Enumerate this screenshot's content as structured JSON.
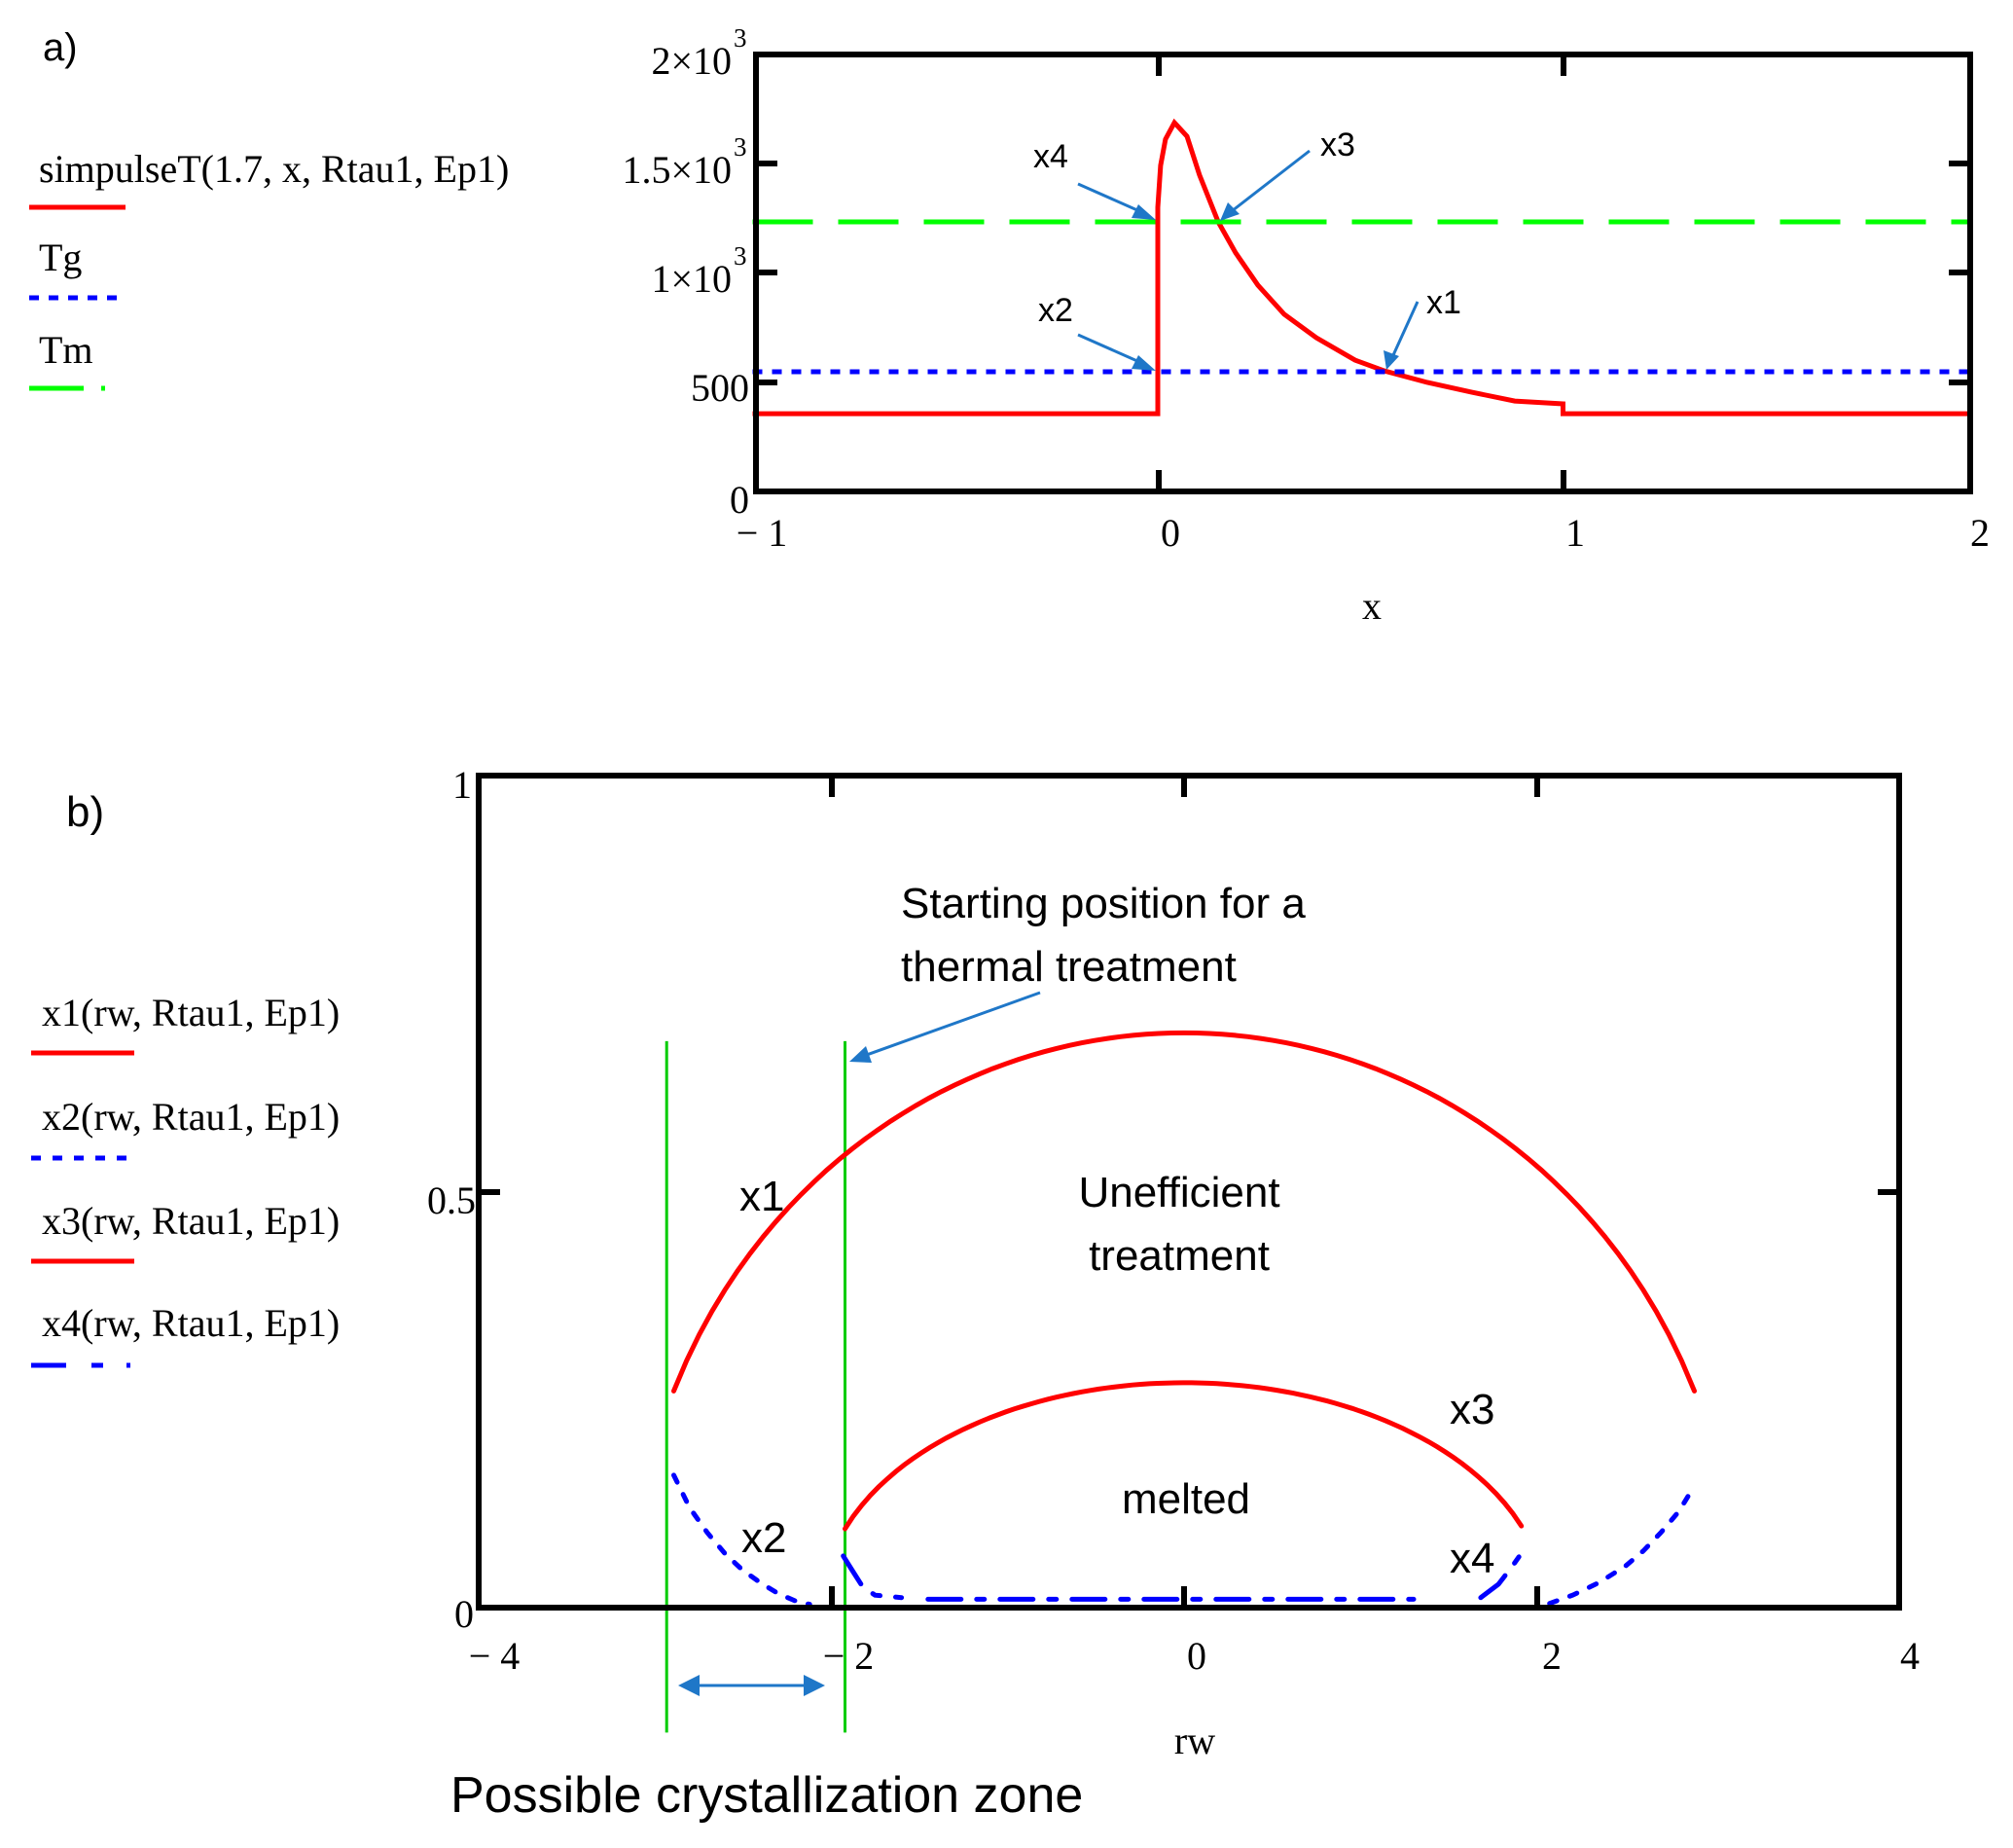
{
  "panel_a": {
    "label": "a)",
    "legend": [
      {
        "label": "simpulseT(1.7, x, Rtau1, Ep1)",
        "color": "#ff0000",
        "style": "solid"
      },
      {
        "label": "Tg",
        "color": "#0000ff",
        "style": "dotted"
      },
      {
        "label": "Tm",
        "color": "#00ff00",
        "style": "dashed"
      }
    ],
    "y_ticks": [
      {
        "base": "0",
        "exp": ""
      },
      {
        "base": "500",
        "exp": ""
      },
      {
        "base": "1×10",
        "exp": "3"
      },
      {
        "base": "1.5×10",
        "exp": "3"
      },
      {
        "base": "2×10",
        "exp": "3"
      }
    ],
    "x_ticks": [
      "− 1",
      "0",
      "1",
      "2"
    ],
    "xlabel": "x",
    "annotations": [
      "x4",
      "x3",
      "x2",
      "x1"
    ]
  },
  "panel_b": {
    "label": "b)",
    "legend": [
      {
        "label": "x1(rw, Rtau1, Ep1)",
        "color": "#ff0000",
        "style": "solid"
      },
      {
        "label": "x2(rw, Rtau1, Ep1)",
        "color": "#0000ff",
        "style": "dotted"
      },
      {
        "label": "x3(rw, Rtau1, Ep1)",
        "color": "#ff0000",
        "style": "solid"
      },
      {
        "label": "x4(rw, Rtau1, Ep1)",
        "color": "#0000ff",
        "style": "dash-dot"
      }
    ],
    "y_ticks": [
      "0",
      "0.5",
      "1"
    ],
    "x_ticks": [
      "− 4",
      "− 2",
      "0",
      "2",
      "4"
    ],
    "xlabel": "rw",
    "annotations": {
      "start_line1": "Starting position for a",
      "start_line2": "thermal treatment",
      "uneff_line1": "Unefficient",
      "uneff_line2": "treatment",
      "melted": "melted",
      "x1": "x1",
      "x2": "x2",
      "x3": "x3",
      "x4": "x4",
      "caption": "Possible crystallization zone"
    }
  },
  "chart_data": [
    {
      "type": "line",
      "title": "a)",
      "xlabel": "x",
      "ylabel": "",
      "xlim": [
        -1,
        2
      ],
      "ylim": [
        0,
        2000
      ],
      "grid": false,
      "legend_position": "left",
      "series": [
        {
          "name": "simpulseT(1.7, x, Rtau1, Ep1)",
          "color": "#ff0000",
          "style": "solid",
          "x": [
            -1,
            0,
            0,
            0.007,
            0.019,
            0.041,
            0.072,
            0.103,
            0.149,
            0.192,
            0.247,
            0.312,
            0.391,
            0.487,
            0.559,
            0.665,
            0.775,
            0.881,
            1.0,
            1.0,
            2.0
          ],
          "y": [
            356,
            356,
            1301,
            1492,
            1612,
            1688,
            1626,
            1448,
            1234,
            1092,
            944,
            811,
            704,
            601,
            552,
            499,
            454,
            414,
            401,
            356,
            356
          ]
        },
        {
          "name": "Tg",
          "color": "#0000ff",
          "style": "dotted",
          "x": [
            -1,
            2
          ],
          "y": [
            548,
            548
          ]
        },
        {
          "name": "Tm",
          "color": "#00ff00",
          "style": "dashed",
          "x": [
            -1,
            2
          ],
          "y": [
            1234,
            1234
          ]
        }
      ],
      "annotations": [
        {
          "text": "x4",
          "target": [
            0,
            1234
          ]
        },
        {
          "text": "x3",
          "target": [
            0.149,
            1234
          ]
        },
        {
          "text": "x2",
          "target": [
            0,
            548
          ]
        },
        {
          "text": "x1",
          "target": [
            0.559,
            548
          ]
        }
      ]
    },
    {
      "type": "line",
      "title": "b)",
      "xlabel": "rw",
      "ylabel": "",
      "xlim": [
        -4,
        4
      ],
      "ylim": [
        0,
        1
      ],
      "grid": false,
      "legend_position": "left",
      "series": [
        {
          "name": "x1(rw, Rtau1, Ep1)",
          "color": "#ff0000",
          "style": "solid",
          "ellipse": {
            "a": 3.12,
            "peak": 0.69,
            "xmin": -2.89,
            "xmax": 2.89
          }
        },
        {
          "name": "x2(rw, Rtau1, Ep1)",
          "color": "#0000ff",
          "style": "dotted",
          "segments": [
            {
              "x": [
                -2.89,
                -2.8,
                -2.7,
                -2.6,
                -2.5,
                -2.4,
                -2.3,
                -2.2,
                -2.12
              ],
              "y": [
                0.159,
                0.12,
                0.09,
                0.065,
                0.045,
                0.03,
                0.017,
                0.008,
                0.004
              ]
            },
            {
              "x": [
                2.07,
                2.2,
                2.35,
                2.5,
                2.6,
                2.7,
                2.8,
                2.89
              ],
              "y": [
                0.005,
                0.015,
                0.03,
                0.05,
                0.068,
                0.09,
                0.115,
                0.146
              ]
            }
          ]
        },
        {
          "name": "x3(rw, Rtau1, Ep1)",
          "color": "#ff0000",
          "style": "solid",
          "ellipse": {
            "a": 2.05,
            "peak": 0.27,
            "xmin": -1.92,
            "xmax": 1.91
          }
        },
        {
          "name": "x4(rw, Rtau1, Ep1)",
          "color": "#0000ff",
          "style": "dash-dot",
          "segments": [
            {
              "x": [
                -1.93,
                -1.88,
                -1.82,
                -1.75,
                -1.6
              ],
              "y": [
                0.062,
                0.045,
                0.025,
                0.015,
                0.012
              ]
            },
            {
              "x": [
                -1.45,
                1.3
              ],
              "y": [
                0.01,
                0.01
              ]
            },
            {
              "x": [
                1.68,
                1.78,
                1.86,
                1.9
              ],
              "y": [
                0.012,
                0.028,
                0.05,
                0.062
              ]
            }
          ]
        }
      ],
      "vertical_lines": [
        {
          "x": -2.93,
          "color": "#00cc00",
          "ymin": 0.68,
          "ymax": -0.15
        },
        {
          "x": -1.92,
          "color": "#00cc00",
          "ymin": 0.68,
          "ymax": -0.15
        }
      ],
      "annotations": [
        {
          "text": "Starting position for a thermal treatment",
          "target": [
            -1.92,
            0.68
          ]
        },
        {
          "text": "Unefficient treatment",
          "at": [
            0,
            0.37
          ]
        },
        {
          "text": "melted",
          "at": [
            0,
            0.12
          ]
        },
        {
          "text": "x1",
          "at": [
            -2.4,
            0.52
          ]
        },
        {
          "text": "x2",
          "at": [
            -2.35,
            0.07
          ]
        },
        {
          "text": "x3",
          "at": [
            1.6,
            0.24
          ]
        },
        {
          "text": "x4",
          "at": [
            1.6,
            0.06
          ]
        },
        {
          "text": "Possible crystallization zone",
          "span": [
            -2.93,
            -1.92
          ]
        }
      ]
    }
  ]
}
